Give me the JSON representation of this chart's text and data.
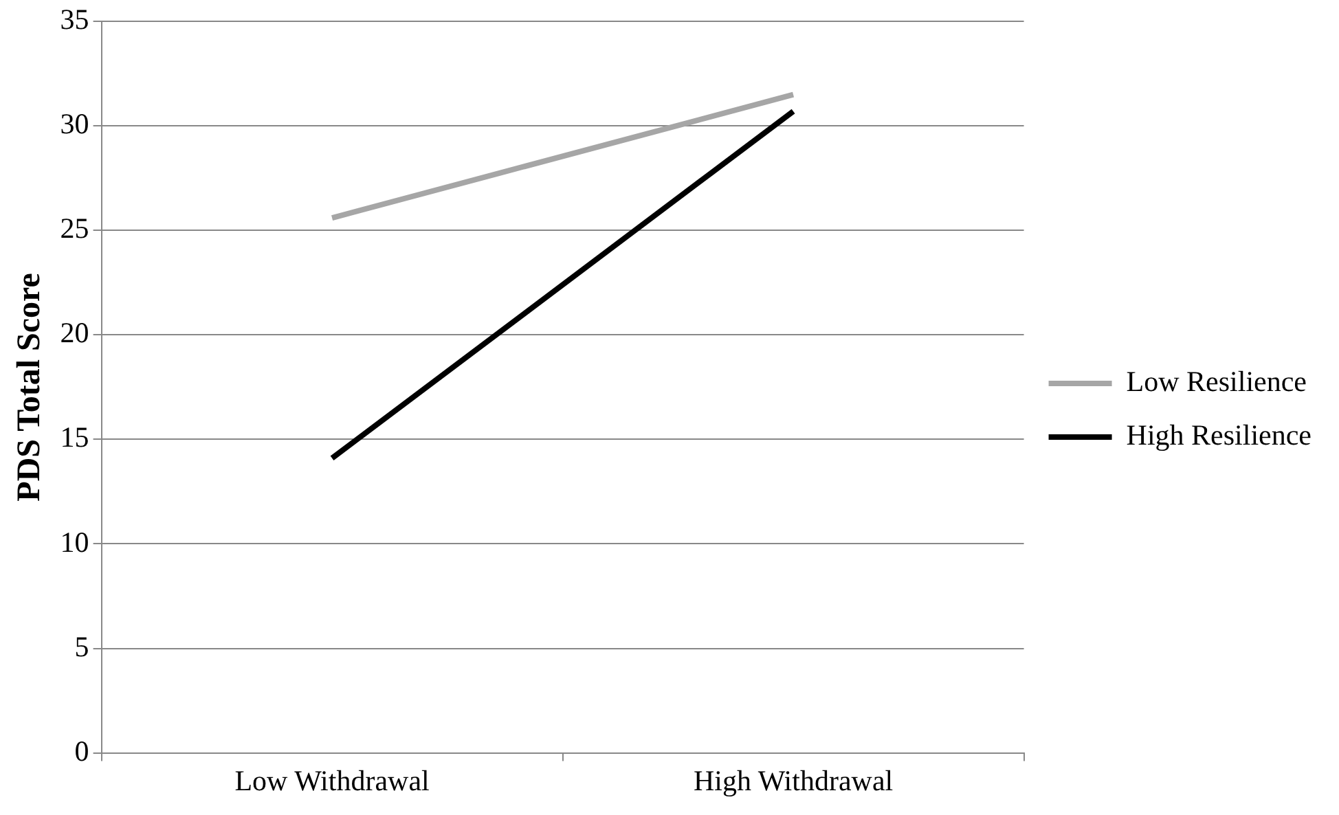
{
  "chart_data": {
    "type": "line",
    "ylabel": "PDS Total Score",
    "categories": [
      "Low Withdrawal",
      "High Withdrawal"
    ],
    "series": [
      {
        "name": "Low Resilience",
        "color": "#a6a6a6",
        "values": [
          25.6,
          31.5
        ]
      },
      {
        "name": "High Resilience",
        "color": "#000000",
        "values": [
          14.1,
          30.7
        ]
      }
    ],
    "ylim": [
      0,
      35
    ],
    "yticks": [
      0,
      5,
      10,
      15,
      20,
      25,
      30,
      35
    ],
    "grid": "y",
    "legend": "right",
    "marker": "none",
    "line_style": "solid"
  }
}
